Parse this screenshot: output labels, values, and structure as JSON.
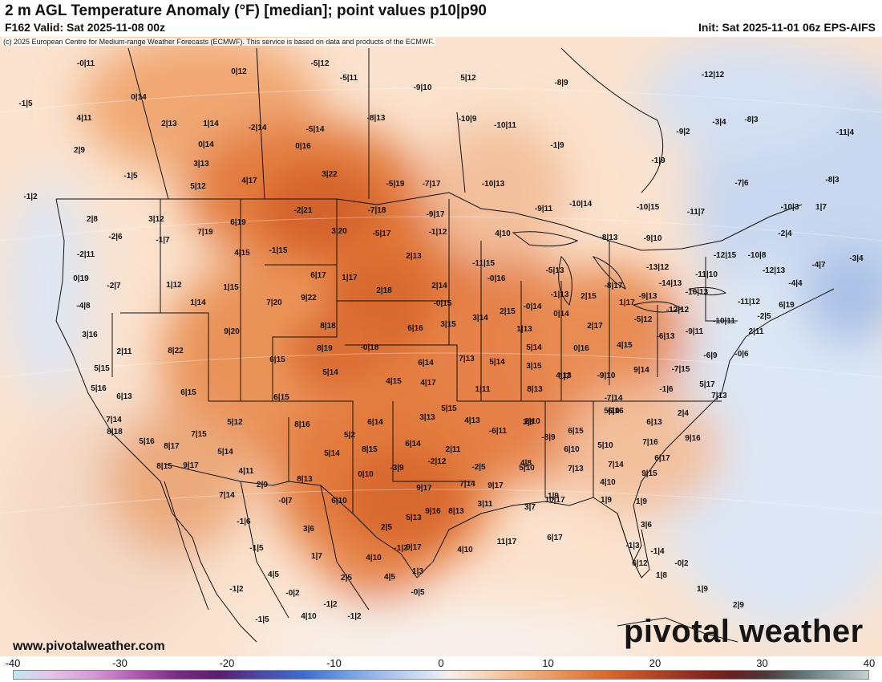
{
  "header": {
    "title": "2 m AGL Temperature Anomaly (°F) [median]; point values p10|p90",
    "subtitle": "F162 Valid: Sat 2025-11-08 00z",
    "init": "Init: Sat 2025-11-01 06z EPS-AIFS"
  },
  "copyright": "(c) 2025 European Centre for Medium-range Weather Forecasts (ECMWF). This service is based on data and products of the ECMWF.",
  "footer": {
    "website": "www.pivotalweather.com",
    "brand": "pivotal weather"
  },
  "colorbar": {
    "min": -40,
    "max": 40,
    "ticks": [
      "-40",
      "-30",
      "-20",
      "-10",
      "0",
      "10",
      "20",
      "30",
      "40"
    ]
  },
  "map": {
    "point_values": [
      "-0|11",
      "0|12",
      "-5|12",
      "-5|11",
      "5|12",
      "-1|5",
      "0|14",
      "-9|10",
      "4|11",
      "2|13",
      "1|14",
      "-2|14",
      "-5|14",
      "-8|13",
      "-8|9",
      "-12|12",
      "2|9",
      "0|14",
      "0|16",
      "-10|9",
      "-10|11",
      "-1|9",
      "-9|2",
      "-3|4",
      "-8|3",
      "-11|4",
      "-1|5",
      "3|13",
      "3|22",
      "-5|19",
      "-7|17",
      "-10|13",
      "-1|9",
      "-8|3",
      "5|12",
      "4|17",
      "-7|6",
      "-1|2",
      "2|8",
      "3|12",
      "6|19",
      "-2|21",
      "-7|18",
      "-9|17",
      "-9|11",
      "-10|14",
      "-10|15",
      "-11|7",
      "-10|3",
      "1|7",
      "-2|6",
      "-1|7",
      "7|19",
      "3|20",
      "-5|17",
      "-1|12",
      "4|10",
      "-8|13",
      "-9|10",
      "-2|4",
      "-2|11",
      "4|15",
      "-1|15",
      "-11|15",
      "-12|15",
      "-10|8",
      "-3|4",
      "0|19",
      "6|17",
      "1|17",
      "2|13",
      "-5|13",
      "-13|12",
      "-12|13",
      "-4|7",
      "-2|7",
      "1|12",
      "1|15",
      "-0|16",
      "-8|17",
      "-14|13",
      "-11|10",
      "-4|4",
      "-4|8",
      "1|14",
      "7|20",
      "9|22",
      "2|18",
      "2|14",
      "-1|13",
      "2|15",
      "-9|13",
      "-10|13",
      "-11|12",
      "6|19",
      "-0|15",
      "2|15",
      "-0|14",
      "1|17",
      "-12|12",
      "-2|5",
      "3|16",
      "9|20",
      "8|18",
      "6|16",
      "3|15",
      "3|14",
      "1|13",
      "0|14",
      "2|17",
      "-5|12",
      "-9|11",
      "-10|11",
      "2|11",
      "2|11",
      "8|22",
      "8|19",
      "-0|18",
      "4|15",
      "-6|13",
      "-6|9",
      "-0|6",
      "5|15",
      "6|15",
      "6|14",
      "7|13",
      "5|14",
      "5|14",
      "3|15",
      "0|16",
      "9|14",
      "-7|15",
      "1|7",
      "5|17",
      "5|16",
      "5|14",
      "4|15",
      "4|17",
      "4|13",
      "-9|10",
      "-1|6",
      "7|13",
      "6|13",
      "6|15",
      "6|15",
      "1|11",
      "8|13",
      "-7|14",
      "2|4",
      "7|14",
      "5|15",
      "6|16",
      "6|14",
      "3|13",
      "4|13",
      "2|10",
      "5|10",
      "6|13",
      "8|18",
      "7|15",
      "5|12",
      "5|2",
      "3|8",
      "6|15",
      "5|16",
      "8|17",
      "8|16",
      "8|15",
      "6|14",
      "2|11",
      "-6|11",
      "-8|9",
      "5|10",
      "7|16",
      "9|16",
      "9|17",
      "5|14",
      "-3|9",
      "-2|12",
      "5|10",
      "6|10",
      "6|17",
      "8|15",
      "5|14",
      "4|11",
      "0|10",
      "-2|5",
      "4|8",
      "7|13",
      "7|14",
      "9|15",
      "7|14",
      "2|9",
      "8|13",
      "7|14",
      "9|17",
      "4|10",
      "-0|7",
      "6|10",
      "9|17",
      "8|13",
      "3|11",
      "1|9",
      "1|9",
      "1|9",
      "-1|6",
      "5|13",
      "9|16",
      "3|7",
      "10|17",
      "3|6",
      "3|6",
      "2|5",
      "-1|5",
      "-1|2",
      "4|10",
      "11|17",
      "6|17",
      "-1|4",
      "-1|3",
      "1|7",
      "4|10",
      "9|17",
      "6|12",
      "-0|2",
      "4|5",
      "2|5",
      "4|5",
      "1|3",
      "1|8",
      "-1|2",
      "-0|2",
      "-0|5",
      "1|9",
      "2|9",
      "-1|2",
      "-1|5",
      "4|10",
      "-1|2"
    ],
    "description": "Median temperature anomaly shading over North America"
  }
}
